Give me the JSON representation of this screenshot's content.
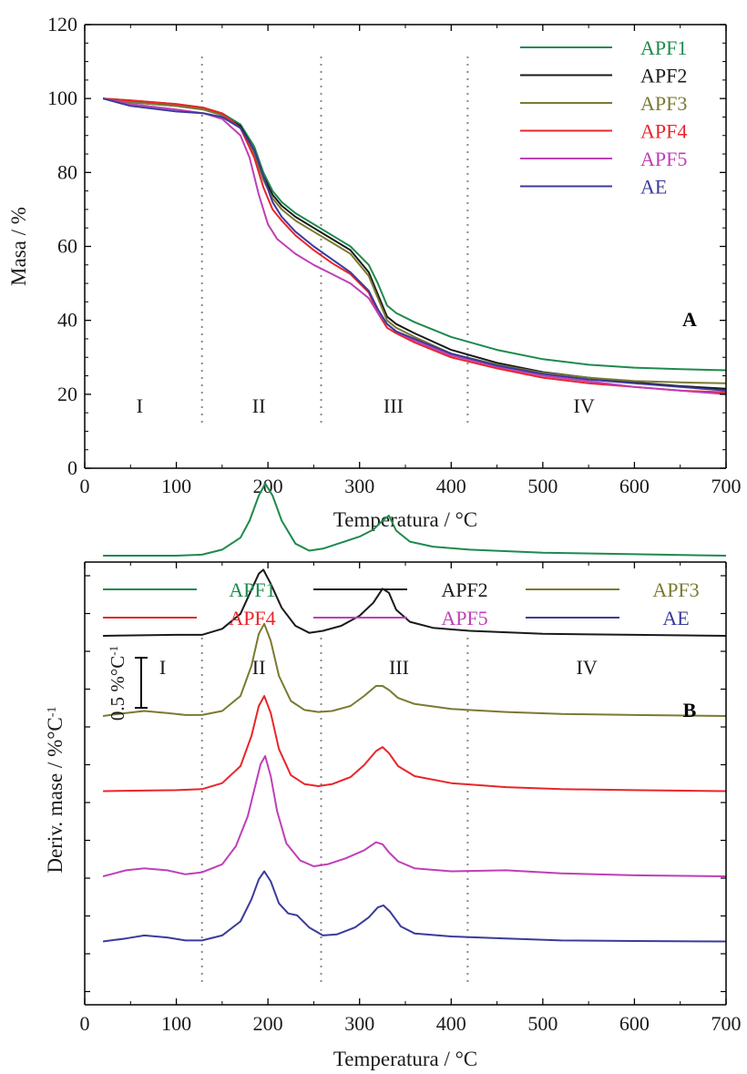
{
  "chart_data": [
    {
      "type": "line",
      "panel_label": "A",
      "xlabel": "Temperatura / °C",
      "ylabel": "Masa / %",
      "xlim": [
        0,
        700
      ],
      "ylim": [
        0,
        120
      ],
      "xticks": [
        0,
        100,
        200,
        300,
        400,
        500,
        600,
        700
      ],
      "yticks": [
        0,
        20,
        40,
        60,
        80,
        100,
        120
      ],
      "stage_dividers": [
        128,
        258,
        418
      ],
      "stage_labels": [
        {
          "text": "I",
          "x": 60,
          "y": 17
        },
        {
          "text": "II",
          "x": 190,
          "y": 17
        },
        {
          "text": "III",
          "x": 337,
          "y": 17
        },
        {
          "text": "IV",
          "x": 545,
          "y": 17
        }
      ],
      "legend_position": "top-right",
      "series": [
        {
          "name": "APF1",
          "color": "#1e8a4e",
          "x": [
            20,
            50,
            100,
            130,
            150,
            170,
            185,
            195,
            205,
            215,
            230,
            250,
            270,
            290,
            310,
            320,
            330,
            340,
            360,
            400,
            450,
            500,
            550,
            600,
            650,
            700
          ],
          "y": [
            100,
            99.5,
            98.5,
            97.5,
            96,
            93,
            87,
            80,
            75,
            72,
            69,
            66,
            63,
            60,
            55,
            50,
            44,
            42,
            39.5,
            35.5,
            32,
            29.5,
            28,
            27.2,
            26.8,
            26.5
          ]
        },
        {
          "name": "APF2",
          "color": "#1a1a1a",
          "x": [
            20,
            50,
            100,
            130,
            150,
            170,
            185,
            195,
            205,
            215,
            230,
            250,
            270,
            290,
            310,
            320,
            330,
            340,
            360,
            400,
            450,
            500,
            550,
            600,
            650,
            700
          ],
          "y": [
            100,
            99,
            98,
            97,
            95.5,
            92.5,
            86,
            79,
            74,
            71,
            68,
            65,
            62,
            59,
            53,
            47,
            41,
            39,
            36.5,
            32,
            28.5,
            26,
            24.5,
            23.2,
            22.2,
            21.5
          ]
        },
        {
          "name": "APF3",
          "color": "#7a7a32",
          "x": [
            20,
            50,
            100,
            130,
            150,
            170,
            185,
            195,
            205,
            215,
            230,
            250,
            270,
            290,
            310,
            320,
            330,
            340,
            360,
            400,
            450,
            500,
            550,
            600,
            650,
            700
          ],
          "y": [
            100,
            99,
            98,
            97,
            95.5,
            92,
            85,
            78,
            73,
            70,
            67,
            64,
            61,
            58,
            52,
            46,
            40,
            38,
            35.5,
            31,
            28,
            25.8,
            24.5,
            23.6,
            23.2,
            23
          ]
        },
        {
          "name": "APF4",
          "color": "#e8262b",
          "x": [
            20,
            50,
            100,
            130,
            150,
            170,
            185,
            195,
            205,
            215,
            230,
            250,
            270,
            290,
            310,
            320,
            330,
            340,
            360,
            400,
            450,
            500,
            550,
            600,
            650,
            700
          ],
          "y": [
            100,
            99.5,
            98.5,
            97.5,
            96,
            92,
            84,
            76,
            70,
            67,
            63,
            59,
            55.5,
            52.5,
            47.5,
            42,
            38,
            36.5,
            34,
            30,
            27,
            24.5,
            23,
            22,
            21,
            20.5
          ]
        },
        {
          "name": "APF5",
          "color": "#bf3fb8",
          "x": [
            20,
            50,
            100,
            130,
            150,
            170,
            180,
            190,
            200,
            210,
            230,
            250,
            270,
            290,
            310,
            320,
            330,
            340,
            360,
            400,
            450,
            500,
            550,
            600,
            650,
            700
          ],
          "y": [
            100,
            98.5,
            97,
            96,
            94.5,
            90,
            84,
            74,
            66,
            62,
            58,
            55,
            52.5,
            50,
            46,
            42,
            39,
            37,
            34.5,
            30.5,
            27.5,
            25,
            23.5,
            22,
            21,
            20
          ]
        },
        {
          "name": "AE",
          "color": "#3b3b9c",
          "x": [
            20,
            50,
            100,
            130,
            150,
            170,
            185,
            195,
            205,
            215,
            230,
            250,
            270,
            290,
            310,
            320,
            330,
            340,
            360,
            400,
            450,
            500,
            550,
            600,
            650,
            700
          ],
          "y": [
            100,
            98,
            96.5,
            96,
            95,
            92,
            86,
            79,
            72,
            68,
            64,
            60,
            56.5,
            53,
            48,
            43,
            39,
            37,
            35,
            31,
            27.8,
            25.5,
            24,
            23,
            22,
            21
          ]
        }
      ]
    },
    {
      "type": "line",
      "panel_label": "B",
      "xlabel": "Temperatura / °C",
      "ylabel": "Deriv. mase / %°C-1",
      "xlim": [
        0,
        700
      ],
      "xticks": [
        0,
        100,
        200,
        300,
        400,
        500,
        600,
        700
      ],
      "stage_dividers": [
        128,
        258,
        418
      ],
      "stage_labels": [
        {
          "text": "I",
          "x": 85
        },
        {
          "text": "II",
          "x": 190
        },
        {
          "text": "III",
          "x": 343
        },
        {
          "text": "IV",
          "x": 548
        }
      ],
      "scale_bar_label": "0.5 %°C-1",
      "scale_bar_value": 0.5,
      "legend_position": "top",
      "series": [
        {
          "name": "APF1",
          "color": "#1e8a4e",
          "offset": 4.3,
          "x": [
            20,
            100,
            128,
            150,
            170,
            180,
            190,
            197,
            205,
            215,
            230,
            245,
            260,
            280,
            300,
            315,
            325,
            332,
            340,
            355,
            380,
            420,
            500,
            600,
            700
          ],
          "y": [
            0,
            0,
            0.01,
            0.06,
            0.18,
            0.35,
            0.6,
            0.72,
            0.6,
            0.35,
            0.12,
            0.05,
            0.07,
            0.13,
            0.19,
            0.26,
            0.35,
            0.4,
            0.25,
            0.14,
            0.09,
            0.06,
            0.03,
            0.015,
            0
          ]
        },
        {
          "name": "APF2",
          "color": "#1a1a1a",
          "offset": 3.5,
          "x": [
            20,
            100,
            128,
            150,
            170,
            180,
            190,
            195,
            203,
            215,
            230,
            245,
            260,
            280,
            300,
            315,
            325,
            332,
            340,
            355,
            380,
            420,
            500,
            600,
            700
          ],
          "y": [
            0,
            0.01,
            0.01,
            0.07,
            0.22,
            0.42,
            0.62,
            0.66,
            0.52,
            0.28,
            0.1,
            0.03,
            0.05,
            0.1,
            0.2,
            0.33,
            0.47,
            0.43,
            0.26,
            0.14,
            0.08,
            0.05,
            0.02,
            0.01,
            0
          ]
        },
        {
          "name": "APF3",
          "color": "#7a7a32",
          "offset": 2.7,
          "x": [
            20,
            45,
            65,
            90,
            110,
            128,
            150,
            170,
            182,
            190,
            196,
            203,
            212,
            225,
            240,
            255,
            270,
            290,
            305,
            318,
            325,
            332,
            342,
            360,
            400,
            460,
            520,
            600,
            700
          ],
          "y": [
            0,
            0.03,
            0.05,
            0.03,
            0.01,
            0.01,
            0.05,
            0.2,
            0.5,
            0.82,
            0.92,
            0.75,
            0.4,
            0.15,
            0.06,
            0.04,
            0.05,
            0.1,
            0.2,
            0.3,
            0.3,
            0.26,
            0.18,
            0.12,
            0.07,
            0.04,
            0.02,
            0.01,
            0
          ]
        },
        {
          "name": "APF4",
          "color": "#e8262b",
          "offset": 1.95,
          "x": [
            20,
            100,
            128,
            150,
            170,
            182,
            190,
            196,
            203,
            212,
            225,
            240,
            255,
            270,
            290,
            305,
            318,
            325,
            332,
            342,
            360,
            400,
            460,
            520,
            600,
            700
          ],
          "y": [
            0,
            0.01,
            0.02,
            0.08,
            0.25,
            0.55,
            0.85,
            0.95,
            0.78,
            0.42,
            0.16,
            0.07,
            0.05,
            0.07,
            0.14,
            0.26,
            0.4,
            0.44,
            0.38,
            0.25,
            0.15,
            0.08,
            0.04,
            0.02,
            0.01,
            0
          ]
        },
        {
          "name": "APF5",
          "color": "#bf3fb8",
          "offset": 1.1,
          "x": [
            20,
            45,
            65,
            90,
            110,
            128,
            150,
            165,
            178,
            186,
            192,
            197,
            203,
            210,
            220,
            235,
            250,
            265,
            285,
            305,
            318,
            325,
            332,
            342,
            360,
            400,
            460,
            520,
            600,
            700
          ],
          "y": [
            0,
            0.06,
            0.08,
            0.06,
            0.02,
            0.04,
            0.12,
            0.3,
            0.6,
            0.9,
            1.12,
            1.2,
            1.0,
            0.65,
            0.33,
            0.16,
            0.1,
            0.12,
            0.18,
            0.26,
            0.34,
            0.32,
            0.24,
            0.15,
            0.08,
            0.05,
            0.06,
            0.03,
            0.01,
            0
          ]
        },
        {
          "name": "AE",
          "color": "#3b3b9c",
          "offset": 0.45,
          "x": [
            20,
            45,
            65,
            90,
            110,
            128,
            150,
            170,
            182,
            190,
            196,
            203,
            212,
            222,
            232,
            245,
            260,
            275,
            295,
            310,
            320,
            326,
            333,
            345,
            360,
            400,
            460,
            520,
            600,
            700
          ],
          "y": [
            0,
            0.03,
            0.06,
            0.04,
            0.01,
            0.01,
            0.06,
            0.2,
            0.42,
            0.62,
            0.7,
            0.6,
            0.38,
            0.28,
            0.26,
            0.14,
            0.06,
            0.07,
            0.14,
            0.24,
            0.34,
            0.36,
            0.3,
            0.15,
            0.08,
            0.05,
            0.03,
            0.01,
            0.005,
            0
          ]
        }
      ]
    }
  ]
}
